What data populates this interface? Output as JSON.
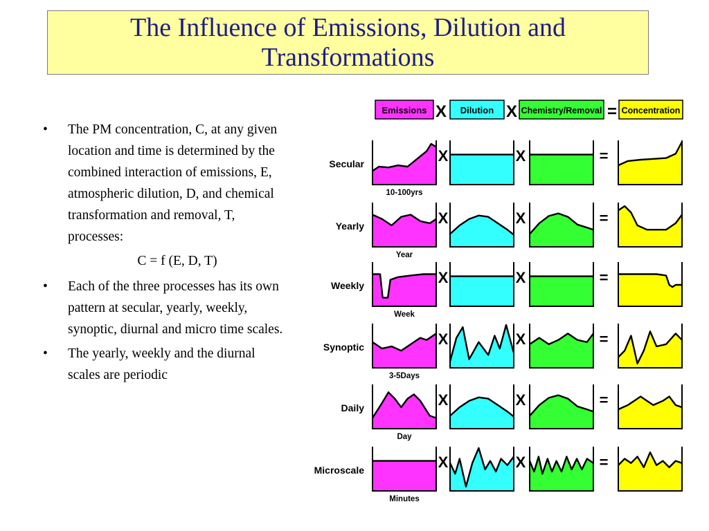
{
  "title": "The Influence of Emissions, Dilution and Transformations",
  "bullets": [
    "The PM concentration, C, at any given location and time is determined by the combined interaction of emissions, E, atmospheric dilution, D, and chemical transformation and removal, T, processes:",
    "Each of the three processes has its own pattern at secular, yearly, weekly, synoptic, diurnal and micro time scales.",
    "The yearly, weekly and the diurnal scales are periodic"
  ],
  "formula": "C = f (E, D, T)",
  "diagram": {
    "columns": [
      {
        "label": "Emissions",
        "color": "#ff33ff"
      },
      {
        "label": "Dilution",
        "color": "#33ffff"
      },
      {
        "label": "Chemistry/Removal",
        "color": "#33ff33"
      },
      {
        "label": "Concentration",
        "color": "#ffff00"
      }
    ],
    "multiply_symbol": "X",
    "equals_symbol": "=",
    "rows": [
      {
        "label": "Secular",
        "timescale": "10-100yrs"
      },
      {
        "label": "Yearly",
        "timescale": "Year"
      },
      {
        "label": "Weekly",
        "timescale": "Week"
      },
      {
        "label": "Synoptic",
        "timescale": "3-5Days"
      },
      {
        "label": "Daily",
        "timescale": "Day"
      },
      {
        "label": "Microscale",
        "timescale": "Minutes"
      }
    ]
  }
}
